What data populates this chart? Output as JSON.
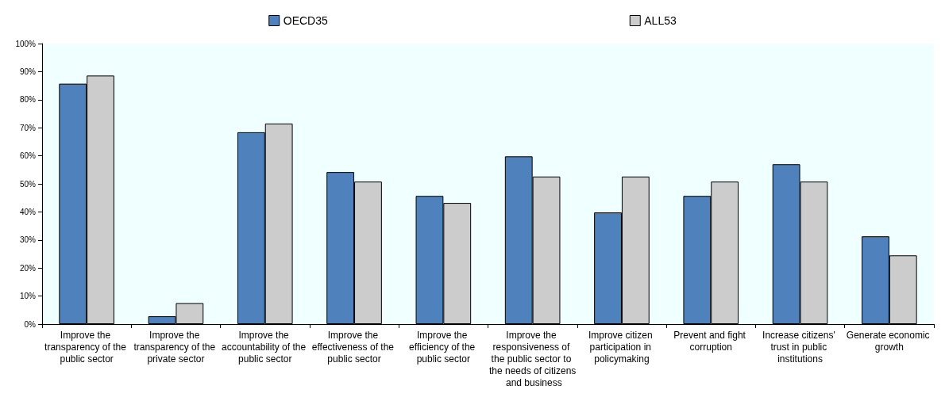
{
  "chart_data": {
    "type": "bar",
    "categories": [
      "Improve the transparency of the public sector",
      "Improve the transparency of the private sector",
      "Improve the accountability of the public sector",
      "Improve the effectiveness of the public sector",
      "Improve the efficiency of the public sector",
      "Improve the responsiveness of the public sector to the needs of citizens and business",
      "Improve citizen participation in policymaking",
      "Prevent and fight corruption",
      "Increase citizens' trust in public institutions",
      "Generate economic growth"
    ],
    "series": [
      {
        "name": "OECD35",
        "color": "#4f81bd",
        "values": [
          85.7,
          2.8,
          68.4,
          54.2,
          45.7,
          59.8,
          39.8,
          45.7,
          57.0,
          31.3
        ]
      },
      {
        "name": "ALL53",
        "color": "#cccccc",
        "values": [
          88.6,
          7.5,
          71.5,
          50.8,
          43.2,
          52.6,
          52.6,
          50.8,
          50.8,
          24.5
        ]
      }
    ],
    "ylim": [
      0,
      100
    ],
    "yticks": [
      {
        "value": 0,
        "label": "0%"
      },
      {
        "value": 10,
        "label": "10%"
      },
      {
        "value": 20,
        "label": "20%"
      },
      {
        "value": 30,
        "label": "30%"
      },
      {
        "value": 40,
        "label": "40%"
      },
      {
        "value": 50,
        "label": "50%"
      },
      {
        "value": 60,
        "label": "60%"
      },
      {
        "value": 70,
        "label": "70%"
      },
      {
        "value": 80,
        "label": "80%"
      },
      {
        "value": 90,
        "label": "90%"
      },
      {
        "value": 100,
        "label": "100%"
      }
    ],
    "grid": false,
    "legend": "top"
  }
}
